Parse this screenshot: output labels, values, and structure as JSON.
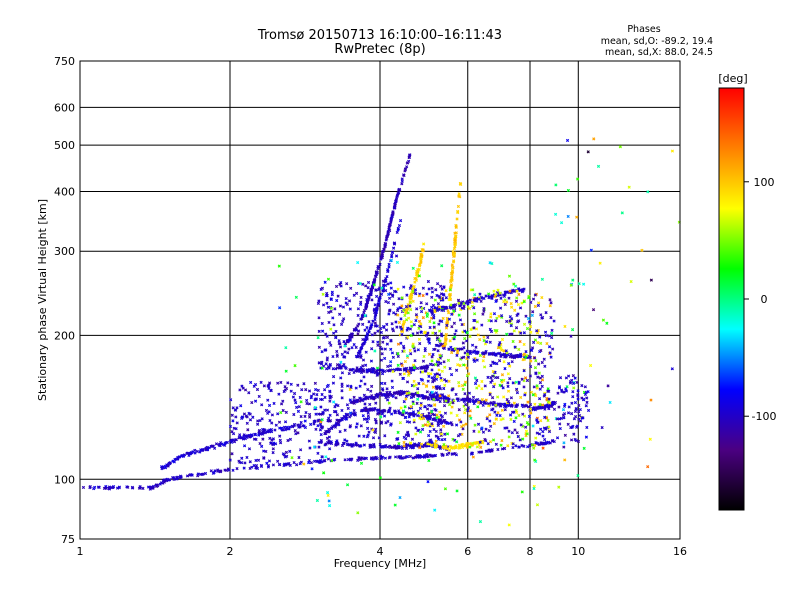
{
  "chart_data": {
    "type": "scatter",
    "title": "Tromsø 20150713 16:10:00–16:11:43",
    "subtitle": "RwPretec (8p)",
    "xlabel": "Frequency [MHz]",
    "ylabel": "Stationary phase Virtual Height [km]",
    "x_scale": "log",
    "y_scale": "log",
    "xlim": [
      1,
      16
    ],
    "ylim": [
      75,
      750
    ],
    "x_ticks": [
      {
        "value": 1,
        "label": "1"
      },
      {
        "value": 2,
        "label": "2"
      },
      {
        "value": 4,
        "label": "4"
      },
      {
        "value": 6,
        "label": "6"
      },
      {
        "value": 8,
        "label": "8"
      },
      {
        "value": 10,
        "label": "10"
      },
      {
        "value": 16,
        "label": "16"
      }
    ],
    "y_ticks": [
      {
        "value": 75,
        "label": "75"
      },
      {
        "value": 100,
        "label": "100"
      },
      {
        "value": 200,
        "label": "200"
      },
      {
        "value": 300,
        "label": "300"
      },
      {
        "value": 400,
        "label": "400"
      },
      {
        "value": 500,
        "label": "500"
      },
      {
        "value": 600,
        "label": "600"
      },
      {
        "value": 750,
        "label": "750"
      }
    ],
    "grid": true,
    "legend": {
      "title": "Phases",
      "lines": [
        "mean, sd,O: -89.2, 19.4",
        "mean, sd,X:  88.0, 24.5"
      ],
      "position": "top-right"
    },
    "colorbar": {
      "unit": "[deg]",
      "range": [
        -180,
        180
      ],
      "ticks": [
        {
          "value": 100,
          "label": "100"
        },
        {
          "value": 0,
          "label": "0"
        },
        {
          "value": -100,
          "label": "-100"
        }
      ],
      "colormap": [
        "#000000",
        "#4b0082",
        "#0000ff",
        "#00ffff",
        "#00ff00",
        "#ffff00",
        "#ff8000",
        "#ff0000"
      ]
    },
    "traces": [
      {
        "kind": "line",
        "c": -100,
        "spread": 0.006,
        "n": 260,
        "pts": [
          [
            1.0,
            96
          ],
          [
            1.2,
            96
          ],
          [
            1.4,
            96
          ],
          [
            1.5,
            100
          ],
          [
            1.7,
            102
          ],
          [
            2.0,
            105
          ],
          [
            2.5,
            107
          ],
          [
            3.0,
            109
          ],
          [
            3.5,
            110
          ],
          [
            4.0,
            111
          ],
          [
            4.5,
            111
          ],
          [
            5.0,
            112
          ],
          [
            6.0,
            113
          ],
          [
            8.0,
            118
          ],
          [
            9.0,
            120
          ]
        ]
      },
      {
        "kind": "line",
        "c": -95,
        "spread": 0.008,
        "n": 140,
        "pts": [
          [
            1.45,
            105
          ],
          [
            1.6,
            112
          ],
          [
            1.8,
            116
          ],
          [
            2.0,
            120
          ],
          [
            2.3,
            125
          ],
          [
            2.6,
            128
          ],
          [
            3.0,
            132
          ]
        ]
      },
      {
        "kind": "line",
        "c": -100,
        "spread": 0.007,
        "n": 140,
        "pts": [
          [
            3.0,
            120
          ],
          [
            3.5,
            118
          ],
          [
            4.0,
            117
          ],
          [
            4.5,
            117
          ],
          [
            5.0,
            118
          ],
          [
            5.5,
            116
          ]
        ]
      },
      {
        "kind": "line",
        "c": -105,
        "spread": 0.004,
        "n": 200,
        "pts": [
          [
            3.4,
            190
          ],
          [
            3.7,
            220
          ],
          [
            3.9,
            260
          ],
          [
            4.1,
            310
          ],
          [
            4.3,
            380
          ],
          [
            4.6,
            480
          ]
        ]
      },
      {
        "kind": "line",
        "c": -95,
        "spread": 0.004,
        "n": 90,
        "pts": [
          [
            3.6,
            180
          ],
          [
            3.85,
            210
          ],
          [
            4.1,
            260
          ],
          [
            4.4,
            350
          ]
        ]
      },
      {
        "kind": "line",
        "c": -100,
        "spread": 0.008,
        "n": 130,
        "pts": [
          [
            3.1,
            125
          ],
          [
            3.4,
            135
          ],
          [
            3.8,
            140
          ],
          [
            4.3,
            138
          ],
          [
            5.0,
            135
          ],
          [
            5.6,
            130
          ]
        ]
      },
      {
        "kind": "line",
        "c": -105,
        "spread": 0.008,
        "n": 110,
        "pts": [
          [
            3.5,
            145
          ],
          [
            4.0,
            150
          ],
          [
            4.5,
            152
          ],
          [
            5.0,
            148
          ],
          [
            5.5,
            146
          ]
        ]
      },
      {
        "kind": "line",
        "c": -100,
        "spread": 0.008,
        "n": 100,
        "pts": [
          [
            3.0,
            175
          ],
          [
            3.5,
            170
          ],
          [
            4.0,
            168
          ],
          [
            4.5,
            170
          ],
          [
            5.0,
            172
          ]
        ]
      },
      {
        "kind": "line",
        "c": -100,
        "spread": 0.008,
        "n": 110,
        "pts": [
          [
            5.0,
            225
          ],
          [
            5.6,
            230
          ],
          [
            6.3,
            238
          ],
          [
            7.0,
            244
          ],
          [
            7.8,
            250
          ]
        ]
      },
      {
        "kind": "line",
        "c": -100,
        "spread": 0.008,
        "n": 90,
        "pts": [
          [
            5.2,
            190
          ],
          [
            6.0,
            185
          ],
          [
            7.0,
            182
          ],
          [
            8.0,
            180
          ]
        ]
      },
      {
        "kind": "line",
        "c": -100,
        "spread": 0.008,
        "n": 90,
        "pts": [
          [
            5.0,
            150
          ],
          [
            6.0,
            146
          ],
          [
            7.0,
            143
          ],
          [
            8.0,
            142
          ]
        ]
      },
      {
        "kind": "line",
        "c": -100,
        "spread": 0.006,
        "n": 70,
        "pts": [
          [
            8.0,
            140
          ],
          [
            8.6,
            142
          ],
          [
            9.0,
            145
          ]
        ]
      },
      {
        "kind": "line",
        "c": 95,
        "spread": 0.006,
        "n": 80,
        "pts": [
          [
            4.4,
            200
          ],
          [
            4.6,
            240
          ],
          [
            4.8,
            280
          ],
          [
            4.9,
            310
          ]
        ]
      },
      {
        "kind": "line",
        "c": 100,
        "spread": 0.006,
        "n": 90,
        "pts": [
          [
            5.4,
            190
          ],
          [
            5.5,
            230
          ],
          [
            5.6,
            280
          ],
          [
            5.7,
            340
          ],
          [
            5.8,
            420
          ]
        ]
      },
      {
        "kind": "line",
        "c": 90,
        "spread": 0.007,
        "n": 70,
        "pts": [
          [
            5.0,
            118
          ],
          [
            5.5,
            116
          ],
          [
            6.0,
            118
          ],
          [
            6.5,
            120
          ]
        ]
      },
      {
        "kind": "cloud",
        "c": -100,
        "cs": 12,
        "n": 560,
        "x": [
          3.0,
          5.4
        ],
        "y": [
          120,
          260
        ]
      },
      {
        "kind": "cloud",
        "c": -100,
        "cs": 12,
        "n": 220,
        "x": [
          2.0,
          3.2
        ],
        "y": [
          108,
          160
        ]
      },
      {
        "kind": "cloud",
        "c": 80,
        "cs": 45,
        "n": 380,
        "x": [
          4.3,
          8.8
        ],
        "y": [
          115,
          250
        ]
      },
      {
        "kind": "cloud",
        "c": -100,
        "cs": 14,
        "n": 330,
        "x": [
          5.0,
          9.0
        ],
        "y": [
          118,
          245
        ]
      },
      {
        "kind": "cloud",
        "c": 10,
        "cs": 80,
        "n": 140,
        "x": [
          2.5,
          10.5
        ],
        "y": [
          80,
          300
        ]
      },
      {
        "kind": "cloud",
        "c": -100,
        "cs": 14,
        "n": 80,
        "x": [
          9.0,
          10.5
        ],
        "y": [
          120,
          165
        ]
      },
      {
        "kind": "cloud",
        "c": 0,
        "cs": 120,
        "n": 40,
        "x": [
          9.0,
          16.0
        ],
        "y": [
          100,
          600
        ]
      }
    ]
  }
}
